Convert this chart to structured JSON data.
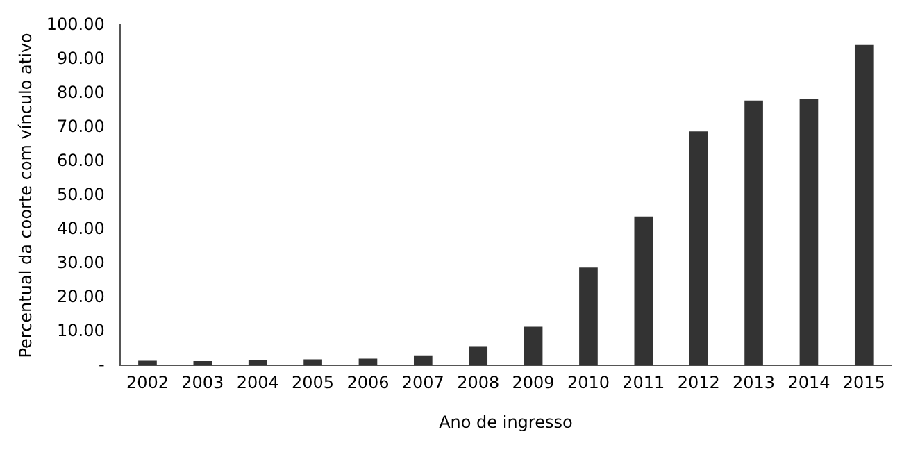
{
  "chart_data": {
    "type": "bar",
    "xlabel": "Ano de ingresso",
    "ylabel": "Percentual da coorte com vínculo ativo",
    "categories": [
      "2002",
      "2003",
      "2004",
      "2005",
      "2006",
      "2007",
      "2008",
      "2009",
      "2010",
      "2011",
      "2012",
      "2013",
      "2014",
      "2015"
    ],
    "values": [
      1.4,
      1.3,
      1.5,
      1.8,
      2.0,
      3.0,
      5.7,
      11.4,
      28.8,
      43.8,
      68.8,
      77.9,
      78.4,
      94.2
    ],
    "color": "#333333",
    "ylim": [
      0,
      100
    ],
    "yticks": [
      {
        "value": 0,
        "label": "-"
      },
      {
        "value": 10,
        "label": "10.00"
      },
      {
        "value": 20,
        "label": "20.00"
      },
      {
        "value": 30,
        "label": "30.00"
      },
      {
        "value": 40,
        "label": "40.00"
      },
      {
        "value": 50,
        "label": "50.00"
      },
      {
        "value": 60,
        "label": "60.00"
      },
      {
        "value": 70,
        "label": "70.00"
      },
      {
        "value": 80,
        "label": "80.00"
      },
      {
        "value": 90,
        "label": "90.00"
      },
      {
        "value": 100,
        "label": "100.00"
      }
    ],
    "grid": false,
    "legend": false
  }
}
